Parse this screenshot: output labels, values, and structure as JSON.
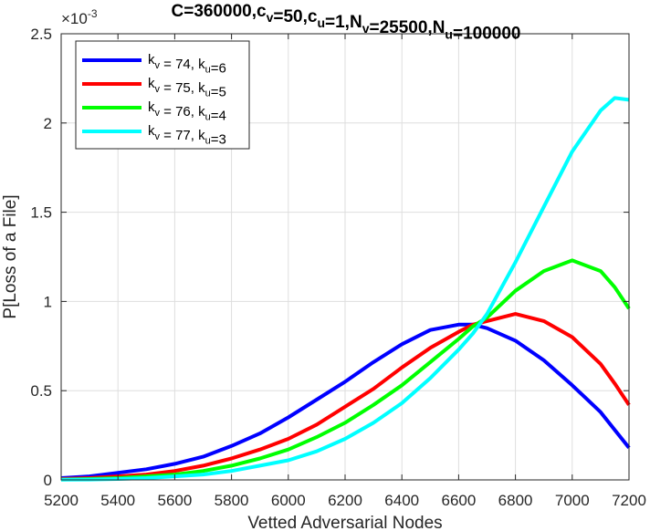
{
  "chart_data": {
    "type": "line",
    "title": {
      "parts": [
        {
          "t": "C=360000,c"
        },
        {
          "t": "v",
          "sub": true
        },
        {
          "t": "=50,c"
        },
        {
          "t": "u",
          "sub": true
        },
        {
          "t": "=1,N"
        },
        {
          "t": "v",
          "sub": true
        },
        {
          "t": "=25500,N"
        },
        {
          "t": "u",
          "sub": true
        },
        {
          "t": "=100000"
        }
      ]
    },
    "xlabel": "Vetted Adversarial Nodes",
    "ylabel": "P[Loss of a File]",
    "y_exponent_label": "×10",
    "y_exponent_power": "-3",
    "xlim": [
      5200,
      7200
    ],
    "ylim": [
      0,
      2.5
    ],
    "xticks": [
      5200,
      5400,
      5600,
      5800,
      6000,
      6200,
      6400,
      6600,
      6800,
      7000,
      7200
    ],
    "yticks": [
      0,
      0.5,
      1,
      1.5,
      2,
      2.5
    ],
    "ytick_labels": [
      "0",
      "0.5",
      "1",
      "1.5",
      "2",
      "2.5"
    ],
    "grid": true,
    "legend_position": "top-left",
    "x": [
      5200,
      5300,
      5400,
      5500,
      5600,
      5700,
      5800,
      5900,
      6000,
      6100,
      6200,
      6300,
      6400,
      6500,
      6600,
      6650,
      6700,
      6800,
      6900,
      7000,
      7100,
      7150,
      7200
    ],
    "series": [
      {
        "legend": [
          {
            "t": "k"
          },
          {
            "t": "v",
            "sub": true
          },
          {
            "t": " = 74, k"
          },
          {
            "t": "u",
            "sub": true
          },
          {
            "t": "=6"
          }
        ],
        "color": "#0000ff",
        "values": [
          0.01,
          0.02,
          0.04,
          0.06,
          0.09,
          0.13,
          0.19,
          0.26,
          0.35,
          0.45,
          0.55,
          0.66,
          0.76,
          0.84,
          0.87,
          0.87,
          0.85,
          0.78,
          0.67,
          0.53,
          0.38,
          0.28,
          0.18
        ]
      },
      {
        "legend": [
          {
            "t": "k"
          },
          {
            "t": "v",
            "sub": true
          },
          {
            "t": " = 75, k"
          },
          {
            "t": "u",
            "sub": true
          },
          {
            "t": "=5"
          }
        ],
        "color": "#ff0000",
        "values": [
          0.005,
          0.01,
          0.02,
          0.03,
          0.05,
          0.08,
          0.12,
          0.17,
          0.23,
          0.31,
          0.41,
          0.51,
          0.63,
          0.74,
          0.83,
          0.87,
          0.89,
          0.93,
          0.89,
          0.8,
          0.65,
          0.54,
          0.42
        ]
      },
      {
        "legend": [
          {
            "t": "k"
          },
          {
            "t": "v",
            "sub": true
          },
          {
            "t": " = 76, k"
          },
          {
            "t": "u",
            "sub": true
          },
          {
            "t": "=4"
          }
        ],
        "color": "#00ff00",
        "values": [
          0.002,
          0.005,
          0.01,
          0.02,
          0.03,
          0.05,
          0.08,
          0.12,
          0.17,
          0.24,
          0.32,
          0.42,
          0.53,
          0.66,
          0.79,
          0.86,
          0.91,
          1.06,
          1.17,
          1.23,
          1.17,
          1.08,
          0.96
        ]
      },
      {
        "legend": [
          {
            "t": "k"
          },
          {
            "t": "v",
            "sub": true
          },
          {
            "t": " = 77, k"
          },
          {
            "t": "u",
            "sub": true
          },
          {
            "t": "=3"
          }
        ],
        "color": "#00ffff",
        "values": [
          0.001,
          0.002,
          0.005,
          0.01,
          0.02,
          0.03,
          0.05,
          0.08,
          0.11,
          0.16,
          0.23,
          0.32,
          0.43,
          0.57,
          0.73,
          0.82,
          0.93,
          1.22,
          1.53,
          1.84,
          2.07,
          2.14,
          2.13
        ]
      }
    ]
  }
}
